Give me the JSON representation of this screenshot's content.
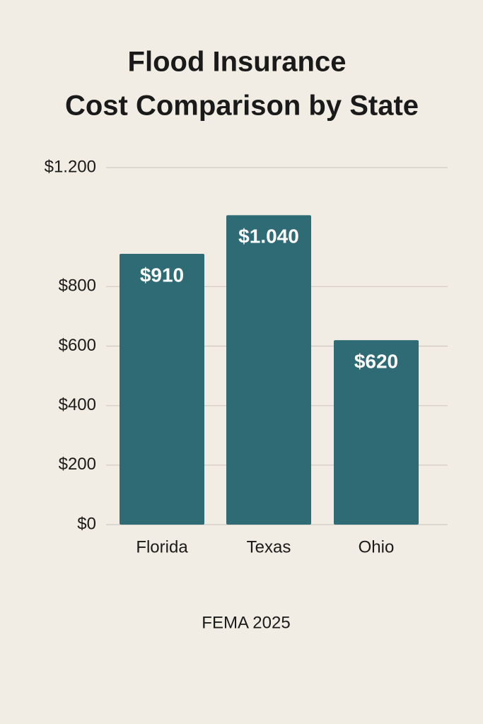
{
  "chart_data": {
    "type": "bar",
    "title": [
      "Flood Insurance",
      "Cost Comparison by State"
    ],
    "categories": [
      "Florida",
      "Texas",
      "Ohio"
    ],
    "values": [
      910,
      1040,
      620
    ],
    "value_labels": [
      "$910",
      "$1.040",
      "$620"
    ],
    "color": "#2e6b74",
    "ylim": [
      0,
      1200
    ],
    "yticks": [
      {
        "value": 0,
        "label": "$0"
      },
      {
        "value": 200,
        "label": "$200"
      },
      {
        "value": 400,
        "label": "$400"
      },
      {
        "value": 600,
        "label": "$600"
      },
      {
        "value": 800,
        "label": "$800"
      },
      {
        "value": 1200,
        "label": "$1.200"
      }
    ],
    "grid": true,
    "source": "FEMA 2025"
  }
}
